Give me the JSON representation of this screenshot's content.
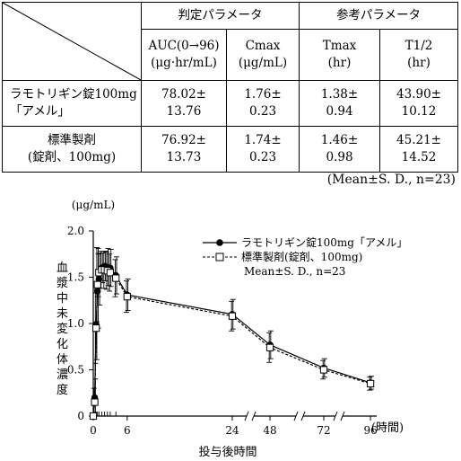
{
  "table": {
    "group_headers": [
      "判定パラメータ",
      "参考パラメータ"
    ],
    "columns": [
      {
        "line1": "AUC(0→96)",
        "line2": "(μg·hr/mL)"
      },
      {
        "line1": "Cmax",
        "line2": "(μg/mL)"
      },
      {
        "line1": "Tmax",
        "line2": "(hr)"
      },
      {
        "line1": "T1/2",
        "line2": "(hr)"
      }
    ],
    "rows": [
      {
        "drug_line1": "ラモトリギン錠100mg",
        "drug_line2": "「アメル」",
        "cells": [
          [
            "78.02±",
            "13.76"
          ],
          [
            "1.76±",
            "0.23"
          ],
          [
            "1.38±",
            "0.94"
          ],
          [
            "43.90±",
            "10.12"
          ]
        ]
      },
      {
        "drug_line1": "標準製剤",
        "drug_line2": "(錠剤、100mg)",
        "cells": [
          [
            "76.92±",
            "13.73"
          ],
          [
            "1.74±",
            "0.23"
          ],
          [
            "1.46±",
            "0.98"
          ],
          [
            "45.21±",
            "14.52"
          ]
        ]
      }
    ]
  },
  "note": "(Mean±S. D., n=23)",
  "chart_data": {
    "type": "line",
    "ylabel_unit": "(μg/mL)",
    "ylabel": "血漿中未変化体濃度",
    "xlabel": "投与後時間",
    "xunit": "(時間)",
    "ylim": [
      0,
      2.0
    ],
    "yticks": [
      "0",
      "0.5",
      "1.0",
      "1.5",
      "2.0"
    ],
    "xticks": [
      "0",
      "6",
      "24",
      "48",
      "72",
      "96"
    ],
    "legend": [
      "ラモトリギン錠100mg「アメル」",
      "標準製剤(錠剤、100mg)",
      "Mean±S. D., n=23"
    ],
    "legend_position": "top-right",
    "x_axis_breaks": true,
    "x": [
      0,
      0.25,
      0.5,
      0.75,
      1,
      1.5,
      2,
      2.5,
      3,
      4,
      6,
      24,
      48,
      72,
      96
    ],
    "series": [
      {
        "name": "ラモトリギン錠100mg「アメル」",
        "marker": "filled-circle",
        "line": "solid",
        "values": [
          0,
          0.2,
          0.99,
          1.35,
          1.48,
          1.6,
          1.62,
          1.61,
          1.6,
          1.52,
          1.31,
          1.1,
          0.77,
          0.52,
          0.36
        ],
        "sd": [
          0,
          0.2,
          0.38,
          0.4,
          0.28,
          0.16,
          0.16,
          0.2,
          0.2,
          0.2,
          0.17,
          0.16,
          0.15,
          0.1,
          0.07
        ]
      },
      {
        "name": "標準製剤(錠剤、100mg)",
        "marker": "open-square",
        "line": "dashed",
        "values": [
          0,
          0.15,
          0.95,
          1.42,
          1.55,
          1.58,
          1.58,
          1.57,
          1.55,
          1.49,
          1.29,
          1.08,
          0.74,
          0.5,
          0.35
        ],
        "sd": [
          0,
          0.15,
          0.38,
          0.4,
          0.26,
          0.2,
          0.2,
          0.2,
          0.2,
          0.2,
          0.17,
          0.16,
          0.16,
          0.1,
          0.07
        ]
      }
    ]
  }
}
